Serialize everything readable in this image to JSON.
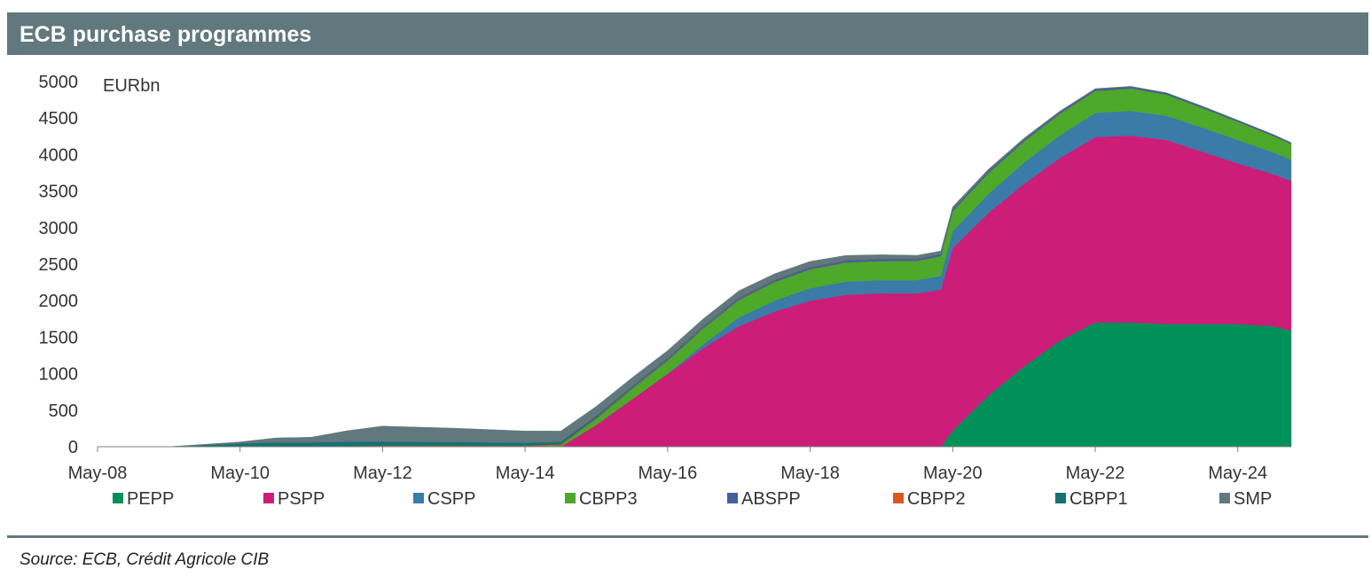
{
  "header": {
    "title": "ECB purchase programmes"
  },
  "footer": {
    "source": "Source: ECB, Crédit Agricole CIB"
  },
  "chart_data": {
    "type": "area",
    "stacked": true,
    "unit_label": "EURbn",
    "title": "",
    "xlabel": "",
    "ylabel": "",
    "ylim": [
      0,
      5000
    ],
    "yticks": [
      0,
      500,
      1000,
      1500,
      2000,
      2500,
      3000,
      3500,
      4000,
      4500,
      5000
    ],
    "xlim": [
      "2008-05",
      "2025-02"
    ],
    "xticks": [
      "May-08",
      "May-10",
      "May-12",
      "May-14",
      "May-16",
      "May-18",
      "May-20",
      "May-22",
      "May-24"
    ],
    "grid": false,
    "legend_position": "bottom",
    "x": [
      "2008-05",
      "2009-05",
      "2010-05",
      "2010-11",
      "2011-05",
      "2011-11",
      "2012-05",
      "2013-05",
      "2014-05",
      "2014-11",
      "2015-05",
      "2015-11",
      "2016-05",
      "2016-11",
      "2017-05",
      "2017-11",
      "2018-05",
      "2018-11",
      "2019-05",
      "2019-11",
      "2020-03",
      "2020-05",
      "2020-11",
      "2021-05",
      "2021-11",
      "2022-05",
      "2022-11",
      "2023-05",
      "2023-11",
      "2024-05",
      "2024-11",
      "2025-02"
    ],
    "series": [
      {
        "name": "PEPP",
        "color": "#00915a",
        "values": [
          0,
          0,
          0,
          0,
          0,
          0,
          0,
          0,
          0,
          0,
          0,
          0,
          0,
          0,
          0,
          0,
          0,
          0,
          0,
          0,
          0,
          220,
          700,
          1100,
          1450,
          1700,
          1700,
          1680,
          1680,
          1680,
          1650,
          1590
        ]
      },
      {
        "name": "PSPP",
        "color": "#cc1d78",
        "values": [
          0,
          0,
          0,
          0,
          0,
          0,
          0,
          0,
          0,
          0,
          300,
          650,
          1000,
          1350,
          1650,
          1850,
          2000,
          2080,
          2100,
          2100,
          2150,
          2500,
          2500,
          2500,
          2500,
          2540,
          2560,
          2520,
          2360,
          2200,
          2080,
          2050
        ]
      },
      {
        "name": "CSPP",
        "color": "#3a7ba8",
        "values": [
          0,
          0,
          0,
          0,
          0,
          0,
          0,
          0,
          0,
          0,
          0,
          0,
          0,
          50,
          120,
          150,
          170,
          180,
          180,
          180,
          190,
          230,
          260,
          290,
          310,
          330,
          340,
          330,
          330,
          320,
          300,
          290
        ]
      },
      {
        "name": "CBPP3",
        "color": "#4ea82a",
        "values": [
          0,
          0,
          0,
          0,
          0,
          0,
          0,
          0,
          0,
          20,
          80,
          140,
          180,
          220,
          240,
          255,
          260,
          262,
          262,
          265,
          270,
          275,
          285,
          290,
          295,
          300,
          305,
          290,
          270,
          250,
          225,
          215
        ]
      },
      {
        "name": "ABSPP",
        "color": "#4a5e9c",
        "values": [
          0,
          0,
          0,
          0,
          0,
          0,
          0,
          0,
          0,
          2,
          8,
          15,
          18,
          22,
          25,
          26,
          27,
          28,
          28,
          28,
          28,
          28,
          27,
          25,
          25,
          25,
          24,
          23,
          22,
          20,
          18,
          17
        ]
      },
      {
        "name": "CBPP2",
        "color": "#d9581f",
        "values": [
          0,
          0,
          0,
          0,
          0,
          10,
          15,
          14,
          13,
          12,
          10,
          8,
          7,
          6,
          5,
          4,
          4,
          3,
          3,
          2,
          2,
          2,
          1,
          1,
          0,
          0,
          0,
          0,
          0,
          0,
          0,
          0
        ]
      },
      {
        "name": "CBPP1",
        "color": "#137272",
        "values": [
          0,
          0,
          45,
          60,
          60,
          58,
          57,
          50,
          42,
          35,
          25,
          16,
          12,
          8,
          5,
          3,
          2,
          1,
          1,
          0,
          0,
          0,
          0,
          0,
          0,
          0,
          0,
          0,
          0,
          0,
          0,
          0
        ]
      },
      {
        "name": "SMP",
        "color": "#61787e",
        "values": [
          0,
          0,
          20,
          60,
          70,
          150,
          210,
          190,
          160,
          145,
          130,
          115,
          100,
          95,
          90,
          80,
          75,
          65,
          55,
          45,
          40,
          30,
          25,
          18,
          12,
          8,
          5,
          3,
          2,
          1,
          0,
          0
        ]
      }
    ]
  }
}
